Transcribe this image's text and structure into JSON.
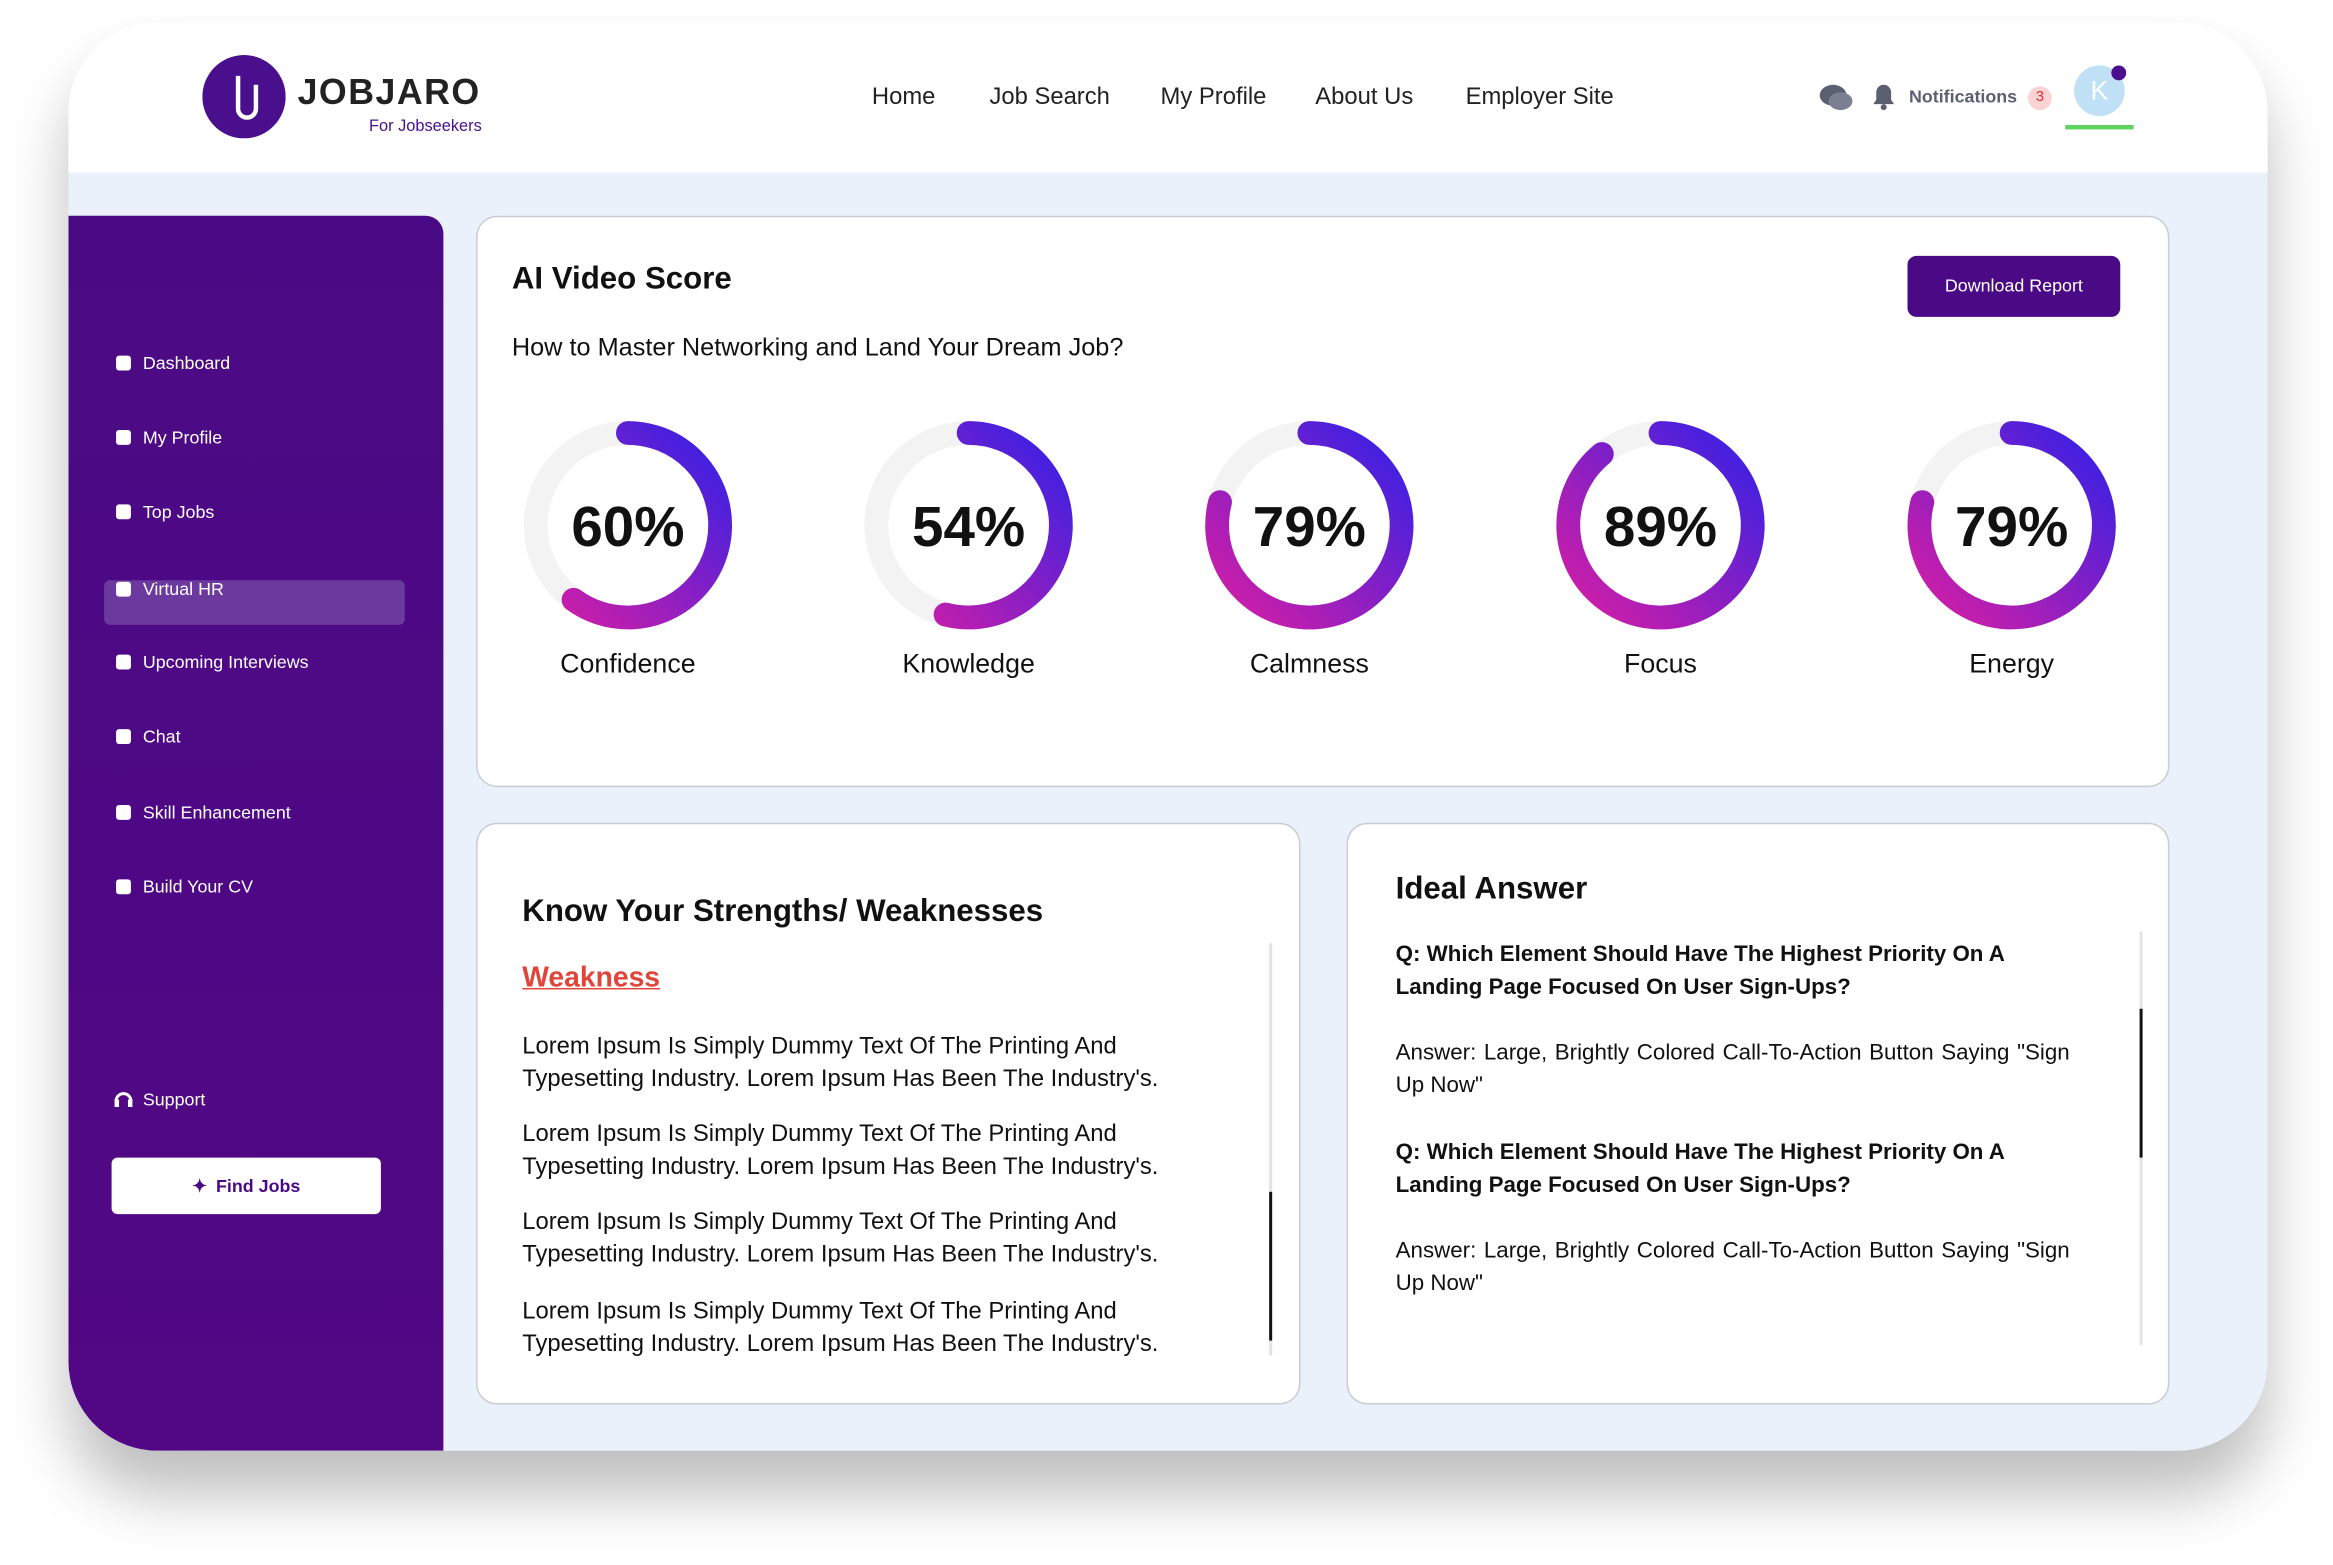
{
  "header": {
    "logo": "JOBJARO",
    "tagline": "For Jobseekers",
    "nav": [
      "Home",
      "Job Search",
      "My Profile",
      "About Us",
      "Employer Site"
    ],
    "notifications": "Notifications",
    "notification_count": "3",
    "avatar": "K"
  },
  "sidebar": {
    "items": [
      "Dashboard",
      "My Profile",
      "Top Jobs",
      "Virtual HR",
      "Upcoming Interviews",
      "Chat",
      "Skill Enhancement",
      "Build Your CV"
    ],
    "support": "Support",
    "find_jobs": "Find Jobs"
  },
  "score_card": {
    "title": "AI Video Score",
    "download": "Download Report",
    "question": "How to Master Networking and Land Your Dream Job?",
    "scores": [
      {
        "name": "Confidence",
        "value": 60,
        "value_label": "60%"
      },
      {
        "name": "Knowledge",
        "value": 54,
        "value_label": "54%"
      },
      {
        "name": "Calmness",
        "value": 79,
        "value_label": "79%"
      },
      {
        "name": "Focus",
        "value": 89,
        "value_label": "89%"
      },
      {
        "name": "Energy",
        "value": 79,
        "value_label": "79%"
      }
    ]
  },
  "strengths": {
    "title": "Know Your Strengths/ Weaknesses",
    "subtitle": "Weakness",
    "paragraphs": [
      "Lorem Ipsum Is Simply Dummy Text Of The Printing And Typesetting Industry. Lorem Ipsum Has Been The Industry's.",
      "Lorem Ipsum Is Simply Dummy Text Of The Printing And Typesetting Industry. Lorem Ipsum Has Been The Industry's.",
      "Lorem Ipsum Is Simply Dummy Text Of The Printing And Typesetting Industry. Lorem Ipsum Has Been The Industry's.",
      "Lorem Ipsum Is Simply Dummy Text Of The Printing And Typesetting Industry. Lorem Ipsum Has Been The Industry's."
    ]
  },
  "ideal": {
    "title": "Ideal Answer",
    "qa": [
      {
        "q": "Q: Which Element Should Have The Highest Priority On A Landing Page Focused On User Sign-Ups?",
        "a": "Answer: Large, Brightly Colored Call-To-Action Button Saying \"Sign Up Now\""
      },
      {
        "q": "Q: Which Element Should Have The Highest Priority On A Landing Page Focused On User Sign-Ups?",
        "a": "Answer: Large, Brightly Colored Call-To-Action Button Saying \"Sign Up Now\""
      }
    ]
  }
}
